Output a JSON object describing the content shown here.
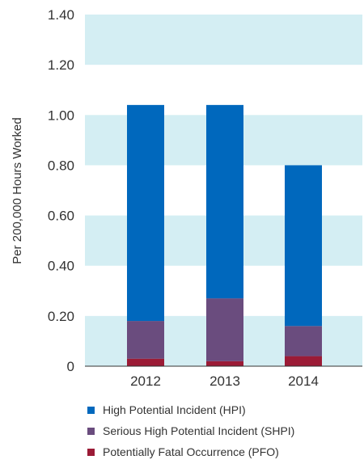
{
  "chart_data": {
    "type": "bar",
    "stacked": true,
    "categories": [
      "2012",
      "2013",
      "2014"
    ],
    "series": [
      {
        "name": "Potentially Fatal Occurrence (PFO)",
        "color": "#9b1b36",
        "values": [
          0.03,
          0.02,
          0.04
        ]
      },
      {
        "name": "Serious High Potential Incident (SHPI)",
        "color": "#6a4c7e",
        "values": [
          0.15,
          0.25,
          0.12
        ]
      },
      {
        "name": "High Potential Incident (HPI)",
        "color": "#0068bd",
        "values": [
          0.86,
          0.77,
          0.64
        ]
      }
    ],
    "ylabel": "Per 200,000 Hours Worked",
    "yticks": [
      "0",
      "0.20",
      "0.40",
      "0.60",
      "0.80",
      "1.00",
      "1.20",
      "1.40"
    ],
    "ylim": [
      0,
      1.4
    ],
    "band_color": "#d4eef3",
    "legend_position": "bottom"
  },
  "legend": [
    {
      "label": "High Potential Incident (HPI)",
      "color": "#0068bd"
    },
    {
      "label": "Serious High Potential Incident (SHPI)",
      "color": "#6a4c7e"
    },
    {
      "label": "Potentially Fatal Occurrence (PFO)",
      "color": "#9b1b36"
    }
  ]
}
